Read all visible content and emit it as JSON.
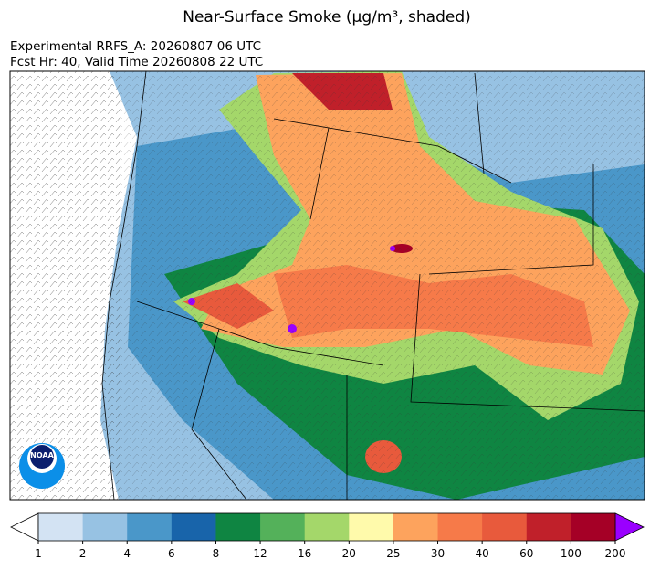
{
  "title": "Near-Surface Smoke (μg/m³, shaded)",
  "subtitle": [
    "Experimental RRFS_A: 20260807 06 UTC",
    "Fcst Hr: 40, Valid Time 20260808 22 UTC"
  ],
  "logo": "NOAA",
  "colorbar": {
    "ticks": [
      1,
      2,
      4,
      6,
      8,
      12,
      16,
      20,
      25,
      30,
      40,
      60,
      100,
      200
    ],
    "colors": [
      "#d3e3f3",
      "#97c2e3",
      "#4a97c9",
      "#1864aa",
      "#0f8542",
      "#54b15a",
      "#a4d76a",
      "#fffaab",
      "#fda35d",
      "#f67a49",
      "#e85a3c",
      "#c0202a",
      "#a50026"
    ],
    "under_color": "#ffffff",
    "over_color": "#9a00ff"
  }
}
